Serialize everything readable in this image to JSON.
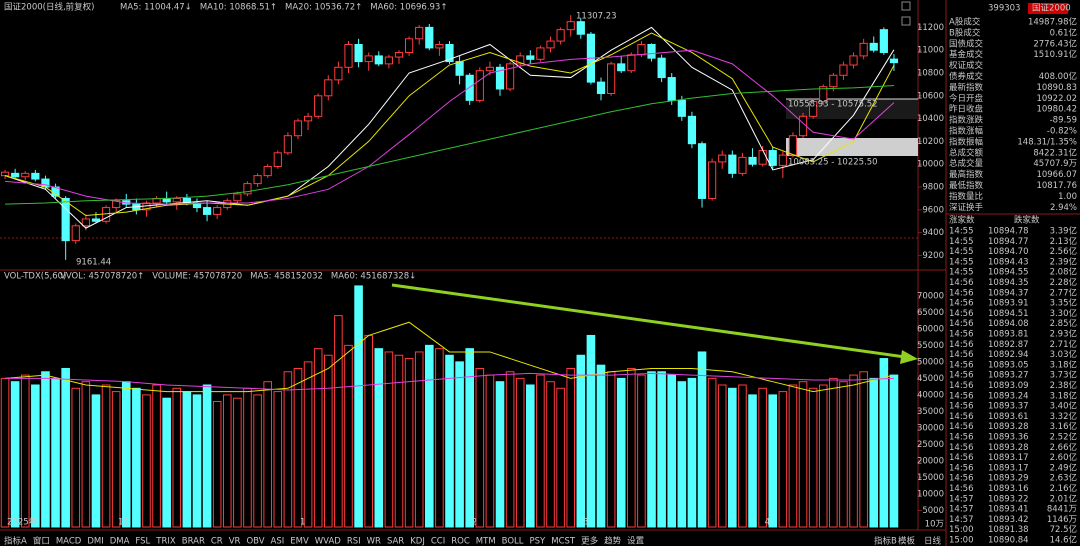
{
  "chart_data": [
    {
      "type": "candlestick",
      "title": "国证2000(日线,前复权)",
      "xlim": [
        -0.5,
        88.5
      ],
      "ylim": [
        9090,
        11370
      ],
      "yticks": [
        9200,
        9400,
        9600,
        9800,
        10000,
        10200,
        10400,
        10600,
        10800,
        11000,
        11200
      ],
      "up_color": "#ff3c3c",
      "down_color": "#54ffff",
      "ohlc": [
        [
          9900,
          9950,
          9870,
          9930
        ],
        [
          9920,
          9960,
          9880,
          9890
        ],
        [
          9890,
          9940,
          9860,
          9920
        ],
        [
          9920,
          9950,
          9850,
          9870
        ],
        [
          9870,
          9900,
          9780,
          9800
        ],
        [
          9800,
          9830,
          9700,
          9720
        ],
        [
          9700,
          9720,
          9161.44,
          9330
        ],
        [
          9330,
          9480,
          9300,
          9460
        ],
        [
          9460,
          9560,
          9420,
          9520
        ],
        [
          9520,
          9580,
          9480,
          9500
        ],
        [
          9500,
          9640,
          9480,
          9620
        ],
        [
          9620,
          9700,
          9580,
          9680
        ],
        [
          9680,
          9740,
          9620,
          9650
        ],
        [
          9650,
          9700,
          9560,
          9600
        ],
        [
          9600,
          9680,
          9540,
          9660
        ],
        [
          9660,
          9720,
          9620,
          9700
        ],
        [
          9700,
          9760,
          9640,
          9670
        ],
        [
          9670,
          9720,
          9600,
          9700
        ],
        [
          9700,
          9740,
          9640,
          9660
        ],
        [
          9660,
          9700,
          9580,
          9620
        ],
        [
          9620,
          9680,
          9500,
          9560
        ],
        [
          9560,
          9640,
          9520,
          9620
        ],
        [
          9620,
          9700,
          9600,
          9680
        ],
        [
          9680,
          9760,
          9660,
          9740
        ],
        [
          9740,
          9850,
          9720,
          9830
        ],
        [
          9830,
          9920,
          9800,
          9900
        ],
        [
          9900,
          10000,
          9880,
          9980
        ],
        [
          9980,
          10120,
          9960,
          10100
        ],
        [
          10100,
          10280,
          10080,
          10250
        ],
        [
          10250,
          10400,
          10220,
          10380
        ],
        [
          10380,
          10450,
          10300,
          10420
        ],
        [
          10420,
          10620,
          10400,
          10600
        ],
        [
          10600,
          10780,
          10560,
          10740
        ],
        [
          10740,
          10900,
          10700,
          10850
        ],
        [
          10850,
          11080,
          10800,
          11050
        ],
        [
          11050,
          11100,
          10850,
          10900
        ],
        [
          10900,
          10980,
          10820,
          10950
        ],
        [
          10950,
          10990,
          10860,
          10880
        ],
        [
          10880,
          10960,
          10840,
          10940
        ],
        [
          10940,
          11000,
          10880,
          10980
        ],
        [
          10980,
          11120,
          10950,
          11100
        ],
        [
          11100,
          11220,
          11050,
          11200
        ],
        [
          11200,
          11230,
          11000,
          11020
        ],
        [
          11020,
          11080,
          10950,
          11050
        ],
        [
          11050,
          11080,
          10880,
          10900
        ],
        [
          10900,
          10950,
          10700,
          10780
        ],
        [
          10780,
          10800,
          10520,
          10560
        ],
        [
          10560,
          10850,
          10540,
          10820
        ],
        [
          10820,
          10900,
          10780,
          10850
        ],
        [
          10850,
          10880,
          10600,
          10660
        ],
        [
          10660,
          10900,
          10640,
          10880
        ],
        [
          10880,
          10980,
          10860,
          10950
        ],
        [
          10950,
          11000,
          10880,
          10920
        ],
        [
          10920,
          11040,
          10900,
          11020
        ],
        [
          11020,
          11120,
          10980,
          11080
        ],
        [
          11080,
          11200,
          11050,
          11180
        ],
        [
          11180,
          11307.23,
          11120,
          11250
        ],
        [
          11250,
          11280,
          11100,
          11140
        ],
        [
          11140,
          11160,
          10700,
          10720
        ],
        [
          10720,
          10760,
          10560,
          10620
        ],
        [
          10620,
          10900,
          10600,
          10880
        ],
        [
          10880,
          10950,
          10800,
          10820
        ],
        [
          10820,
          10980,
          10800,
          10960
        ],
        [
          10960,
          11080,
          10940,
          11050
        ],
        [
          11050,
          11060,
          10900,
          10930
        ],
        [
          10930,
          10960,
          10720,
          10760
        ],
        [
          10760,
          10800,
          10520,
          10560
        ],
        [
          10560,
          10600,
          10380,
          10420
        ],
        [
          10420,
          10460,
          10140,
          10180
        ],
        [
          10180,
          10200,
          9620,
          9700
        ],
        [
          9700,
          10050,
          9680,
          10020
        ],
        [
          10020,
          10120,
          9960,
          10080
        ],
        [
          10080,
          10120,
          9880,
          9920
        ],
        [
          9920,
          10100,
          9900,
          10060
        ],
        [
          10060,
          10140,
          9980,
          10000
        ],
        [
          10000,
          10160,
          9980,
          10120
        ],
        [
          10120,
          10150,
          9960,
          9990
        ],
        [
          9990,
          10110,
          9880,
          10080
        ],
        [
          10080,
          10280,
          10060,
          10250
        ],
        [
          10250,
          10450,
          10230,
          10420
        ],
        [
          10420,
          10580,
          10400,
          10550
        ],
        [
          10550,
          10700,
          10520,
          10680
        ],
        [
          10680,
          10800,
          10640,
          10780
        ],
        [
          10780,
          10900,
          10740,
          10870
        ],
        [
          10870,
          10980,
          10840,
          10950
        ],
        [
          10950,
          11100,
          10920,
          11060
        ],
        [
          11060,
          11120,
          10980,
          11000
        ],
        [
          11180,
          11200,
          10960,
          10980
        ],
        [
          10922.02,
          10966.07,
          10817.76,
          10890.83
        ]
      ],
      "ma_x": [
        0,
        4,
        8,
        12,
        16,
        20,
        24,
        28,
        32,
        36,
        40,
        44,
        48,
        52,
        56,
        60,
        64,
        68,
        72,
        76,
        80,
        84,
        88
      ],
      "series": [
        {
          "name": "MA5",
          "label": "MA5: 11004.47↓",
          "color": "#ffffff",
          "values": [
            9900,
            9780,
            9440,
            9620,
            9650,
            9680,
            9640,
            9720,
            9980,
            10350,
            10800,
            10920,
            11050,
            10780,
            10760,
            11000,
            11200,
            10850,
            10650,
            9950,
            10040,
            10430,
            11004
          ]
        },
        {
          "name": "MA10",
          "label": "MA10: 10868.51↑",
          "color": "#e6e600",
          "values": [
            9900,
            9800,
            9550,
            9580,
            9640,
            9660,
            9640,
            9720,
            9900,
            10200,
            10600,
            10870,
            10980,
            10860,
            10800,
            10960,
            11150,
            10980,
            10750,
            10150,
            10020,
            10200,
            10868
          ]
        },
        {
          "name": "MA20",
          "label": "MA20: 10536.72↑",
          "color": "#e040e0",
          "values": [
            9850,
            9820,
            9720,
            9660,
            9650,
            9660,
            9660,
            9700,
            9780,
            9980,
            10260,
            10550,
            10800,
            10880,
            10920,
            10940,
            10970,
            11000,
            10880,
            10600,
            10280,
            10220,
            10540
          ]
        },
        {
          "name": "MA60",
          "label": "MA60: 10696.93↑",
          "color": "#30c030",
          "values": [
            9650,
            9660,
            9680,
            9690,
            9700,
            9720,
            9760,
            9820,
            9900,
            9980,
            10060,
            10140,
            10220,
            10300,
            10380,
            10460,
            10530,
            10580,
            10620,
            10640,
            10660,
            10670,
            10690
          ]
        }
      ],
      "annotations": [
        "11307.23",
        "9161.44",
        "10558.93 - 10575.52",
        "10083.25 - 10225.50"
      ]
    },
    {
      "type": "volume",
      "title": "VOL-TDX(5,60)",
      "header": [
        "VVOL: 457078720↑",
        "VOLUME: 457078720"
      ],
      "xlim": [
        -0.5,
        88.5
      ],
      "ylim": [
        0,
        76000
      ],
      "yticks": [
        5000,
        10000,
        15000,
        20000,
        25000,
        30000,
        35000,
        40000,
        45000,
        50000,
        55000,
        60000,
        65000,
        70000
      ],
      "y_unit": "10万",
      "xticks": [
        {
          "value": 0,
          "label": "2025年"
        },
        {
          "value": 11,
          "label": "12"
        },
        {
          "value": 29,
          "label": "1"
        },
        {
          "value": 46,
          "label": "2"
        },
        {
          "value": 57,
          "label": "3"
        },
        {
          "value": 75,
          "label": "4"
        }
      ],
      "values": [
        45000,
        44000,
        46000,
        43000,
        47000,
        45000,
        48000,
        42000,
        44000,
        40000,
        43000,
        41000,
        44000,
        42000,
        40000,
        43000,
        39000,
        42000,
        41000,
        40000,
        43000,
        38000,
        40000,
        39000,
        42000,
        40000,
        44000,
        41000,
        47000,
        48000,
        50000,
        54000,
        52000,
        64000,
        55000,
        73000,
        58000,
        54000,
        53000,
        52000,
        51000,
        53000,
        55000,
        54000,
        52000,
        50000,
        54000,
        48000,
        46000,
        44000,
        47000,
        45000,
        43000,
        46000,
        44000,
        42000,
        48000,
        52000,
        58000,
        49000,
        47000,
        45000,
        48000,
        46000,
        47000,
        47000,
        46000,
        44000,
        45000,
        53000,
        45000,
        43000,
        42000,
        43000,
        40000,
        42000,
        40000,
        41000,
        43000,
        44000,
        42000,
        43000,
        45000,
        44000,
        46000,
        47000,
        45000,
        51000,
        46000
      ],
      "ma_x": [
        0,
        4,
        8,
        12,
        16,
        20,
        24,
        28,
        32,
        36,
        40,
        44,
        48,
        52,
        56,
        60,
        64,
        68,
        72,
        76,
        80,
        84,
        88
      ],
      "series": [
        {
          "name": "MA5",
          "label": "MA5: 458152032",
          "color": "#e6e600",
          "values": [
            45000,
            46000,
            43000,
            42000,
            41000,
            41000,
            41000,
            42000,
            48000,
            58000,
            62000,
            53000,
            53000,
            49000,
            45000,
            47000,
            48000,
            48000,
            47000,
            44000,
            41000,
            43000,
            46000
          ]
        },
        {
          "name": "MA60",
          "label": "MA60: 451687328↓",
          "color": "#e040e0",
          "values": [
            45000,
            45000,
            44500,
            44000,
            43000,
            42500,
            42000,
            41500,
            42000,
            43000,
            44000,
            45000,
            46000,
            46500,
            46000,
            46000,
            46500,
            46000,
            45500,
            45000,
            44500,
            44500,
            45000
          ]
        }
      ]
    }
  ],
  "panel": {
    "code": "399303",
    "name": "国证2000",
    "rows": [
      {
        "label": "A股成交",
        "value": "14987.98亿",
        "color": "#e0e0e0"
      },
      {
        "label": "B股成交",
        "value": "0.61亿",
        "color": "#e0e0e0"
      },
      {
        "label": "国债成交",
        "value": "2776.43亿",
        "color": "#e0e0e0"
      },
      {
        "label": "基金成交",
        "value": "1510.91亿",
        "color": "#e0e0e0"
      },
      {
        "label": "权证成交",
        "value": "",
        "color": "#e0e0e0"
      },
      {
        "label": "债券成交",
        "value": "408.00亿",
        "color": "#e0e0e0"
      },
      {
        "label": "最新指数",
        "value": "10890.83",
        "color": "#30d030"
      },
      {
        "label": "今日开盘",
        "value": "10922.02",
        "color": "#30d030"
      },
      {
        "label": "昨日收盘",
        "value": "10980.42",
        "color": "#e0e0e0"
      },
      {
        "label": "指数涨跌",
        "value": "-89.59",
        "color": "#30d030"
      },
      {
        "label": "指数涨幅",
        "value": "-0.82%",
        "color": "#30d030"
      },
      {
        "label": "指数振幅",
        "value": "148.31/1.35%",
        "color": "#e0e0e0"
      },
      {
        "label": "总成交额",
        "value": "8422.31亿",
        "color": "#e0e0e0"
      },
      {
        "label": "总成交量",
        "value": "45707.9万",
        "color": "#e0e0e0"
      },
      {
        "label": "最高指数",
        "value": "10966.07",
        "color": "#30d030"
      },
      {
        "label": "最低指数",
        "value": "10817.76",
        "color": "#30d030"
      },
      {
        "label": "指数量比",
        "value": "1.00",
        "color": "#e0e0e0"
      },
      {
        "label": "深证换手",
        "value": "2.94%",
        "color": "#e0e0e0"
      }
    ],
    "ticks_header": [
      "涨家数",
      "跌家数"
    ],
    "ticks": [
      [
        "14:55",
        "10894.78",
        "3.39亿"
      ],
      [
        "14:55",
        "10894.77",
        "2.13亿"
      ],
      [
        "14:55",
        "10894.70",
        "2.56亿"
      ],
      [
        "14:55",
        "10894.43",
        "2.39亿"
      ],
      [
        "14:55",
        "10894.55",
        "2.08亿"
      ],
      [
        "14:56",
        "10894.35",
        "2.28亿"
      ],
      [
        "14:56",
        "10894.37",
        "2.77亿"
      ],
      [
        "14:56",
        "10893.91",
        "3.35亿"
      ],
      [
        "14:56",
        "10894.51",
        "3.30亿"
      ],
      [
        "14:56",
        "10894.08",
        "2.85亿"
      ],
      [
        "14:56",
        "10893.81",
        "2.93亿"
      ],
      [
        "14:56",
        "10892.87",
        "2.71亿"
      ],
      [
        "14:56",
        "10892.94",
        "3.03亿"
      ],
      [
        "14:56",
        "10893.05",
        "3.18亿"
      ],
      [
        "14:56",
        "10893.27",
        "3.73亿"
      ],
      [
        "14:56",
        "10893.09",
        "2.38亿"
      ],
      [
        "14:56",
        "10893.24",
        "3.18亿"
      ],
      [
        "14:56",
        "10893.37",
        "3.40亿"
      ],
      [
        "14:56",
        "10893.61",
        "3.32亿"
      ],
      [
        "14:56",
        "10893.28",
        "3.16亿"
      ],
      [
        "14:56",
        "10893.36",
        "2.52亿"
      ],
      [
        "14:56",
        "10893.28",
        "2.66亿"
      ],
      [
        "14:56",
        "10893.17",
        "2.60亿"
      ],
      [
        "14:56",
        "10893.17",
        "2.49亿"
      ],
      [
        "14:56",
        "10893.29",
        "2.63亿"
      ],
      [
        "14:56",
        "10893.16",
        "2.16亿"
      ],
      [
        "14:57",
        "10893.22",
        "2.01亿"
      ],
      [
        "14:57",
        "10893.41",
        "8441万"
      ],
      [
        "14:57",
        "10893.42",
        "1146万"
      ],
      [
        "15:00",
        "10891.38",
        "72.5亿"
      ],
      [
        "15:00",
        "10890.84",
        "14.6亿"
      ]
    ]
  },
  "tabs": [
    "指标A",
    "窗口",
    "MACD",
    "DMI",
    "DMA",
    "FSL",
    "TRIX",
    "BRAR",
    "CR",
    "VR",
    "OBV",
    "ASI",
    "EMV",
    "WVAD",
    "RSI",
    "WR",
    "SAR",
    "KDJ",
    "CCI",
    "ROC",
    "MTM",
    "BOLL",
    "PSY",
    "MCST",
    "更多",
    "趋势",
    "设置"
  ],
  "tabs_right": [
    "指标B",
    "模板",
    "日线"
  ]
}
